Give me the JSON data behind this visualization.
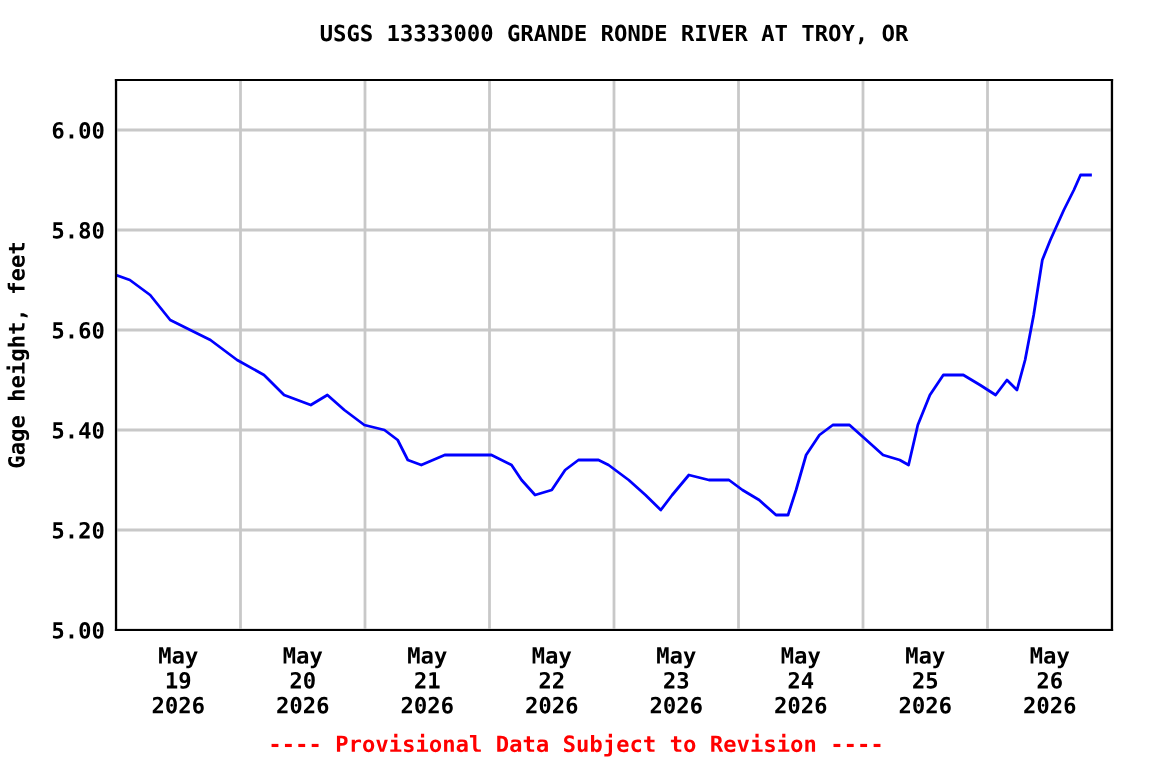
{
  "chart_data": {
    "type": "line",
    "title": "USGS 13333000 GRANDE RONDE RIVER AT TROY, OR",
    "ylabel": "Gage height, feet",
    "annotations": [
      "---- Provisional Data Subject to Revision ----"
    ],
    "x": [
      "2026-05-19T00:00",
      "2026-05-19T02:40",
      "2026-05-19T06:35",
      "2026-05-19T10:27",
      "2026-05-19T14:19",
      "2026-05-19T18:12",
      "2026-05-19T23:21",
      "2026-05-20T04:32",
      "2026-05-20T08:24",
      "2026-05-20T13:33",
      "2026-05-20T16:45",
      "2026-05-20T20:01",
      "2026-05-20T23:52",
      "2026-05-21T03:45",
      "2026-05-21T06:18",
      "2026-05-21T08:15",
      "2026-05-21T10:51",
      "2026-05-21T15:22",
      "2026-05-21T20:31",
      "2026-05-22T00:23",
      "2026-05-22T04:15",
      "2026-05-22T06:11",
      "2026-05-22T08:47",
      "2026-05-22T12:00",
      "2026-05-22T14:35",
      "2026-05-22T17:09",
      "2026-05-22T21:01",
      "2026-05-22T22:57",
      "2026-05-23T02:50",
      "2026-05-23T06:04",
      "2026-05-23T09:01",
      "2026-05-23T11:13",
      "2026-05-23T14:26",
      "2026-05-23T18:18",
      "2026-05-23T22:10",
      "2026-05-24T00:46",
      "2026-05-24T03:59",
      "2026-05-24T07:14",
      "2026-05-24T09:33",
      "2026-05-24T11:06",
      "2026-05-24T13:02",
      "2026-05-24T15:36",
      "2026-05-24T18:11",
      "2026-05-24T21:24",
      "2026-05-25T00:39",
      "2026-05-25T03:52",
      "2026-05-25T07:05",
      "2026-05-25T08:47",
      "2026-05-25T10:34",
      "2026-05-25T12:54",
      "2026-05-25T15:29",
      "2026-05-25T19:21",
      "2026-05-25T22:34",
      "2026-05-26T01:34",
      "2026-05-26T03:45",
      "2026-05-26T05:41",
      "2026-05-26T07:15",
      "2026-05-26T08:54",
      "2026-05-26T10:34",
      "2026-05-26T12:07",
      "2026-05-26T14:43",
      "2026-05-26T16:39",
      "2026-05-26T17:56",
      "2026-05-26T19:51"
    ],
    "series": [
      {
        "color": "#0000ff",
        "values": [
          5.71,
          5.7,
          5.67,
          5.62,
          5.6,
          5.58,
          5.54,
          5.51,
          5.47,
          5.45,
          5.47,
          5.44,
          5.41,
          5.4,
          5.38,
          5.34,
          5.33,
          5.35,
          5.35,
          5.35,
          5.33,
          5.3,
          5.27,
          5.28,
          5.32,
          5.34,
          5.34,
          5.33,
          5.3,
          5.27,
          5.24,
          5.27,
          5.31,
          5.3,
          5.3,
          5.28,
          5.26,
          5.23,
          5.23,
          5.28,
          5.35,
          5.39,
          5.41,
          5.41,
          5.38,
          5.35,
          5.34,
          5.33,
          5.41,
          5.47,
          5.51,
          5.51,
          5.49,
          5.47,
          5.5,
          5.48,
          5.54,
          5.63,
          5.74,
          5.78,
          5.84,
          5.88,
          5.91,
          5.91
        ]
      }
    ],
    "xlim": [
      "2026-05-19T00:00",
      "2026-05-27T00:00"
    ],
    "xticks": [
      {
        "value": "2026-05-19T00:00",
        "label": null
      },
      {
        "value": "2026-05-20T00:00",
        "label": null
      },
      {
        "value": "2026-05-21T00:00",
        "label": null
      },
      {
        "value": "2026-05-22T00:00",
        "label": null
      },
      {
        "value": "2026-05-23T00:00",
        "label": null
      },
      {
        "value": "2026-05-24T00:00",
        "label": null
      },
      {
        "value": "2026-05-25T00:00",
        "label": null
      },
      {
        "value": "2026-05-26T00:00",
        "label": null
      },
      {
        "value": "2026-05-27T00:00",
        "label": null
      },
      {
        "value": "2026-05-19T12:00",
        "label": "May\n19\n2026"
      },
      {
        "value": "2026-05-20T12:00",
        "label": "May\n20\n2026"
      },
      {
        "value": "2026-05-21T12:00",
        "label": "May\n21\n2026"
      },
      {
        "value": "2026-05-22T12:00",
        "label": "May\n22\n2026"
      },
      {
        "value": "2026-05-23T12:00",
        "label": "May\n23\n2026"
      },
      {
        "value": "2026-05-24T12:00",
        "label": "May\n24\n2026"
      },
      {
        "value": "2026-05-25T12:00",
        "label": "May\n25\n2026"
      },
      {
        "value": "2026-05-26T12:00",
        "label": "May\n26\n2026"
      }
    ],
    "ylim": [
      5.0,
      6.1
    ],
    "yticks": [
      {
        "value": 5.0,
        "label": "5.00"
      },
      {
        "value": 5.2,
        "label": "5.20"
      },
      {
        "value": 5.4,
        "label": "5.40"
      },
      {
        "value": 5.6,
        "label": "5.60"
      },
      {
        "value": 5.8,
        "label": "5.80"
      },
      {
        "value": 6.0,
        "label": "6.00"
      }
    ],
    "grid": true,
    "legend": false
  }
}
